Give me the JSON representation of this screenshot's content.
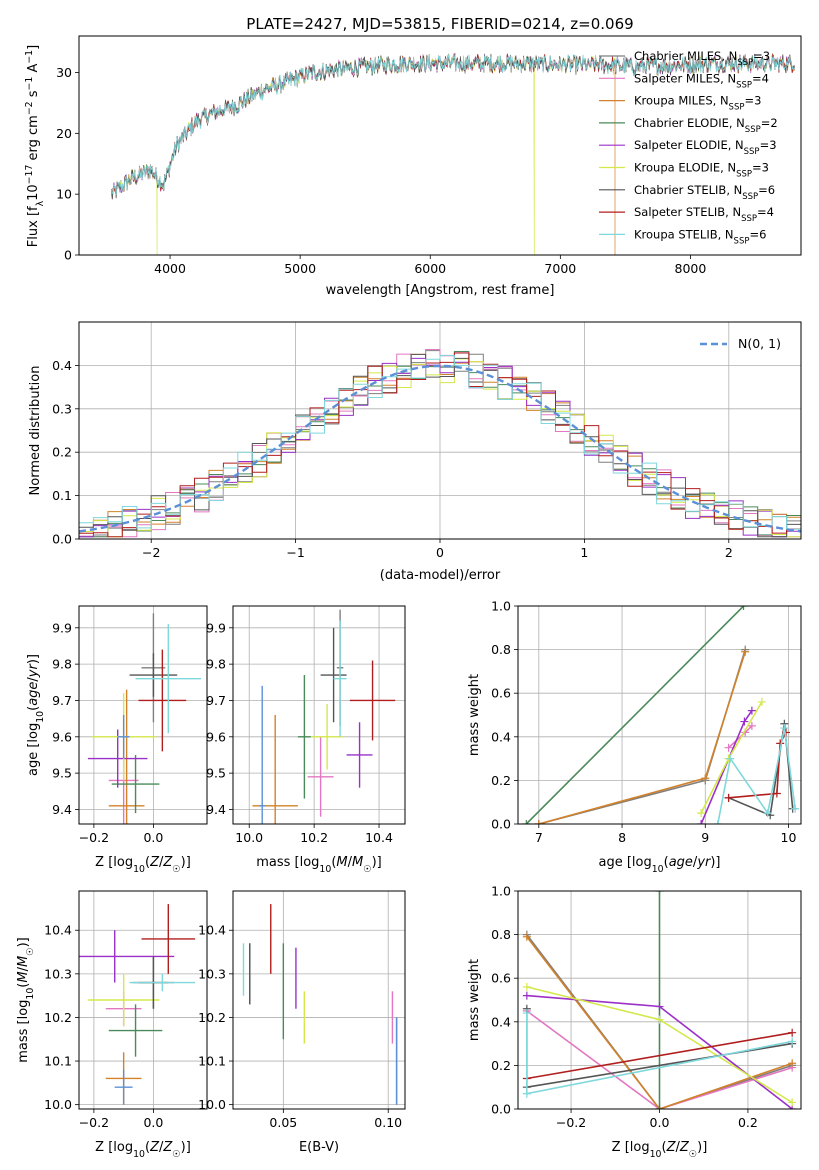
{
  "figure_title": "PLATE=2427, MJD=53815, FIBERID=0214, z=0.069",
  "colors": {
    "Chabrier MILES": "#7f7f7f",
    "Salpeter MILES": "#e377c2",
    "Kroupa MILES": "#d2822a",
    "Chabrier ELODIE": "#4a8a5a",
    "Salpeter ELODIE": "#9b30c8",
    "Kroupa ELODIE": "#d4e84a",
    "Chabrier STELIB": "#555555",
    "Salpeter STELIB": "#b21e1e",
    "Kroupa STELIB": "#7fd8dc",
    "gaussian": "#5b8fd6",
    "extra_blue": "#5b8fd6"
  },
  "legend": [
    {
      "name": "Chabrier MILES",
      "label": "Chabrier MILES, N",
      "sub": "SSP",
      "suffix": "=3"
    },
    {
      "name": "Salpeter MILES",
      "label": "Salpeter MILES, N",
      "sub": "SSP",
      "suffix": "=4"
    },
    {
      "name": "Kroupa MILES",
      "label": "Kroupa MILES, N",
      "sub": "SSP",
      "suffix": "=3"
    },
    {
      "name": "Chabrier ELODIE",
      "label": "Chabrier ELODIE, N",
      "sub": "SSP",
      "suffix": "=2"
    },
    {
      "name": "Salpeter ELODIE",
      "label": "Salpeter ELODIE, N",
      "sub": "SSP",
      "suffix": "=3"
    },
    {
      "name": "Kroupa ELODIE",
      "label": "Kroupa ELODIE, N",
      "sub": "SSP",
      "suffix": "=3"
    },
    {
      "name": "Chabrier STELIB",
      "label": "Chabrier STELIB, N",
      "sub": "SSP",
      "suffix": "=6"
    },
    {
      "name": "Salpeter STELIB",
      "label": "Salpeter STELIB, N",
      "sub": "SSP",
      "suffix": "=4"
    },
    {
      "name": "Kroupa STELIB",
      "label": "Kroupa STELIB, N",
      "sub": "SSP",
      "suffix": "=6"
    }
  ],
  "chart_data": [
    {
      "panel": "spectrum",
      "type": "line",
      "xlabel": "wavelength [Angstrom, rest frame]",
      "ylabel": "Flux [f_λ10⁻¹⁷ erg cm⁻² s⁻¹ A⁻¹]",
      "xlim": [
        3300,
        8850
      ],
      "ylim": [
        0,
        36
      ],
      "xticks": [
        4000,
        5000,
        6000,
        7000,
        8000
      ],
      "yticks": [
        0,
        10,
        20,
        30
      ],
      "legend_position": "right",
      "continuum": {
        "x": [
          3550,
          3700,
          3850,
          3950,
          4050,
          4200,
          4350,
          4500,
          4700,
          4900,
          5100,
          5300,
          5500,
          5800,
          6100,
          6400,
          6700,
          7000,
          7300,
          7600,
          7900,
          8200,
          8500,
          8800
        ],
        "y": [
          10,
          12.5,
          14,
          11.5,
          18,
          22,
          23.5,
          24.5,
          27,
          28.5,
          30,
          30.5,
          31,
          31.5,
          31.5,
          31.5,
          31.5,
          31.3,
          31.3,
          31.0,
          31.2,
          31.5,
          31.5,
          31.5
        ]
      },
      "gaps": [
        {
          "x": 3900,
          "series": "Kroupa ELODIE"
        },
        {
          "x": 6800,
          "series": "Kroupa ELODIE"
        },
        {
          "x": 7420,
          "series": "Kroupa MILES"
        }
      ]
    },
    {
      "panel": "residual_histogram",
      "type": "bar",
      "xlabel": "(data-model)/error",
      "ylabel": "Normed distribution",
      "xlim": [
        -2.5,
        2.5
      ],
      "ylim": [
        0,
        0.5
      ],
      "xticks": [
        -2,
        -1,
        0,
        1,
        2
      ],
      "yticks": [
        0.0,
        0.1,
        0.2,
        0.3,
        0.4
      ],
      "gaussian_label": "N(0, 1)",
      "legend_position": "top-right"
    },
    {
      "panel": "age_vs_Z",
      "type": "scatter",
      "xlabel": "Z [log10(Z/Z☉)]",
      "ylabel": "age [log10(age/yr)]",
      "xlim": [
        -0.25,
        0.18
      ],
      "ylim": [
        9.36,
        9.96
      ],
      "xticks": [
        -0.2,
        0.0
      ],
      "yticks": [
        9.4,
        9.5,
        9.6,
        9.7,
        9.8,
        9.9
      ],
      "points": [
        {
          "series": "Chabrier MILES",
          "x": 0.0,
          "xerr": 0.04,
          "y": 9.79,
          "yerr": 0.15
        },
        {
          "series": "Salpeter MILES",
          "x": -0.1,
          "xerr": 0.05,
          "y": 9.48,
          "yerr": 0.14
        },
        {
          "series": "Kroupa MILES",
          "x": -0.09,
          "xerr": 0.06,
          "y": 9.41,
          "yerr": 0.32
        },
        {
          "series": "Chabrier ELODIE",
          "x": -0.06,
          "xerr": 0.08,
          "y": 9.47,
          "yerr": 0.08
        },
        {
          "series": "Salpeter ELODIE",
          "x": -0.12,
          "xerr": 0.1,
          "y": 9.54,
          "yerr": 0.08
        },
        {
          "series": "Kroupa ELODIE",
          "x": -0.1,
          "xerr": 0.11,
          "y": 9.6,
          "yerr": 0.12
        },
        {
          "series": "Chabrier STELIB",
          "x": 0.0,
          "xerr": 0.08,
          "y": 9.77,
          "yerr": 0.06
        },
        {
          "series": "Salpeter STELIB",
          "x": 0.03,
          "xerr": 0.08,
          "y": 9.7,
          "yerr": 0.14
        },
        {
          "series": "Kroupa STELIB",
          "x": 0.05,
          "xerr": 0.11,
          "y": 9.76,
          "yerr": 0.15
        },
        {
          "series": "extra",
          "x": -0.1,
          "xerr": 0.02,
          "y": 9.6,
          "yerr": 0.06
        }
      ]
    },
    {
      "panel": "age_vs_mass",
      "type": "scatter",
      "xlabel": "mass [log10(M/M☉)]",
      "xlim": [
        9.95,
        10.48
      ],
      "ylim": [
        9.36,
        9.96
      ],
      "xticks": [
        10.0,
        10.2,
        10.4
      ],
      "yticks": [
        9.4,
        9.5,
        9.6,
        9.7,
        9.8,
        9.9
      ],
      "points": [
        {
          "series": "Chabrier MILES",
          "x": 10.28,
          "xerr": 0.01,
          "y": 9.79,
          "yerr": 0.16
        },
        {
          "series": "Salpeter MILES",
          "x": 10.22,
          "xerr": 0.04,
          "y": 9.49,
          "yerr": 0.11
        },
        {
          "series": "Kroupa MILES",
          "x": 10.08,
          "xerr": 0.07,
          "y": 9.41,
          "yerr": 0.25
        },
        {
          "series": "Chabrier ELODIE",
          "x": 10.17,
          "xerr": 0.02,
          "y": 9.6,
          "yerr": 0.17
        },
        {
          "series": "Salpeter ELODIE",
          "x": 10.34,
          "xerr": 0.04,
          "y": 9.55,
          "yerr": 0.09
        },
        {
          "series": "Kroupa ELODIE",
          "x": 10.24,
          "xerr": 0.05,
          "y": 9.6,
          "yerr": 0.09
        },
        {
          "series": "Chabrier STELIB",
          "x": 10.26,
          "xerr": 0.04,
          "y": 9.77,
          "yerr": 0.13
        },
        {
          "series": "Salpeter STELIB",
          "x": 10.38,
          "xerr": 0.07,
          "y": 9.7,
          "yerr": 0.11
        },
        {
          "series": "Kroupa STELIB",
          "x": 10.28,
          "xerr": 0.02,
          "y": 9.76,
          "yerr": 0.16
        },
        {
          "series": "extra",
          "x": 10.04,
          "xerr": 0.01,
          "y": 9.41,
          "yerr": 0.33
        }
      ]
    },
    {
      "panel": "weight_vs_age",
      "type": "line",
      "xlabel": "age [log10(age/yr)]",
      "ylabel": "mass weight",
      "xlim": [
        6.75,
        10.15
      ],
      "ylim": [
        0,
        1.0
      ],
      "xticks": [
        7,
        8,
        9,
        10
      ],
      "yticks": [
        0.0,
        0.2,
        0.4,
        0.6,
        0.8,
        1.0
      ],
      "series": [
        {
          "name": "Chabrier MILES",
          "x": [
            7.0,
            9.0,
            9.48
          ],
          "y": [
            0.0,
            0.2,
            0.8
          ]
        },
        {
          "name": "Salpeter MILES",
          "x": [
            9.28,
            9.48,
            9.56
          ],
          "y": [
            0.35,
            0.42,
            0.45
          ]
        },
        {
          "name": "Kroupa MILES",
          "x": [
            7.0,
            9.0,
            9.48
          ],
          "y": [
            0.0,
            0.21,
            0.79
          ]
        },
        {
          "name": "Chabrier ELODIE",
          "x": [
            6.85,
            9.46
          ],
          "y": [
            0.0,
            1.0
          ]
        },
        {
          "name": "Salpeter ELODIE",
          "x": [
            8.95,
            9.47,
            9.56
          ],
          "y": [
            0.0,
            0.47,
            0.52
          ]
        },
        {
          "name": "Kroupa ELODIE",
          "x": [
            8.95,
            9.28,
            9.68
          ],
          "y": [
            0.05,
            0.3,
            0.56
          ]
        },
        {
          "name": "Chabrier STELIB",
          "x": [
            9.28,
            9.78,
            9.95,
            10.05
          ],
          "y": [
            0.12,
            0.04,
            0.46,
            0.07
          ]
        },
        {
          "name": "Salpeter STELIB",
          "x": [
            9.28,
            9.86,
            9.9,
            9.97
          ],
          "y": [
            0.12,
            0.14,
            0.37,
            0.42
          ]
        },
        {
          "name": "Kroupa STELIB",
          "x": [
            9.15,
            9.3,
            9.75,
            9.95,
            10.08
          ],
          "y": [
            0.0,
            0.3,
            0.05,
            0.44,
            0.07
          ]
        }
      ]
    },
    {
      "panel": "mass_vs_Z",
      "type": "scatter",
      "xlabel": "Z [log10(Z/Z☉)]",
      "ylabel": "mass [log10(M/M☉)]",
      "xlim": [
        -0.25,
        0.18
      ],
      "ylim": [
        9.99,
        10.49
      ],
      "xticks": [
        -0.2,
        0.0
      ],
      "yticks": [
        10.0,
        10.1,
        10.2,
        10.3,
        10.4
      ],
      "points": [
        {
          "series": "Chabrier MILES",
          "x": 0.0,
          "xerr": 0.07,
          "y": 10.28,
          "yerr": 0.06
        },
        {
          "series": "Salpeter MILES",
          "x": -0.1,
          "xerr": 0.06,
          "y": 10.22,
          "yerr": 0.04
        },
        {
          "series": "Kroupa MILES",
          "x": -0.1,
          "xerr": 0.06,
          "y": 10.06,
          "yerr": 0.06
        },
        {
          "series": "Chabrier ELODIE",
          "x": -0.06,
          "xerr": 0.09,
          "y": 10.17,
          "yerr": 0.06
        },
        {
          "series": "Salpeter ELODIE",
          "x": -0.13,
          "xerr": 0.2,
          "y": 10.34,
          "yerr": 0.06
        },
        {
          "series": "Kroupa ELODIE",
          "x": -0.1,
          "xerr": 0.12,
          "y": 10.24,
          "yerr": 0.06
        },
        {
          "series": "Chabrier STELIB",
          "x": 0.0,
          "xerr": 0.05,
          "y": 10.28,
          "yerr": 0.06
        },
        {
          "series": "Salpeter STELIB",
          "x": 0.05,
          "xerr": 0.09,
          "y": 10.38,
          "yerr": 0.08
        },
        {
          "series": "Kroupa STELIB",
          "x": 0.03,
          "xerr": 0.11,
          "y": 10.28,
          "yerr": 0.02
        },
        {
          "series": "extra",
          "x": -0.1,
          "xerr": 0.03,
          "y": 10.04,
          "yerr": 0.04
        }
      ]
    },
    {
      "panel": "mass_vs_ebv",
      "type": "scatter",
      "xlabel": "E(B-V)",
      "xlim": [
        0.026,
        0.108
      ],
      "ylim": [
        9.99,
        10.49
      ],
      "xticks": [
        0.05,
        0.1
      ],
      "yticks": [
        10.0,
        10.1,
        10.2,
        10.3,
        10.4
      ],
      "points": [
        {
          "series": "Chabrier MILES",
          "x": 0.034,
          "y": 10.3,
          "yerr": 0.07
        },
        {
          "series": "Salpeter MILES",
          "x": 0.102,
          "y": 10.2,
          "yerr": 0.06
        },
        {
          "series": "Kroupa MILES",
          "x": 0.104,
          "y": 10.1,
          "yerr": 0.1
        },
        {
          "series": "Chabrier ELODIE",
          "x": 0.05,
          "y": 10.26,
          "yerr": 0.11
        },
        {
          "series": "Salpeter ELODIE",
          "x": 0.056,
          "y": 10.29,
          "yerr": 0.07
        },
        {
          "series": "Kroupa ELODIE",
          "x": 0.06,
          "y": 10.2,
          "yerr": 0.06
        },
        {
          "series": "Chabrier STELIB",
          "x": 0.034,
          "y": 10.3,
          "yerr": 0.07
        },
        {
          "series": "Salpeter STELIB",
          "x": 0.044,
          "y": 10.38,
          "yerr": 0.08
        },
        {
          "series": "Kroupa STELIB",
          "x": 0.031,
          "y": 10.31,
          "yerr": 0.06
        },
        {
          "series": "extra",
          "x": 0.104,
          "y": 10.1,
          "yerr": 0.1
        }
      ]
    },
    {
      "panel": "weight_vs_Z",
      "type": "line",
      "xlabel": "Z [log10(Z/Z☉)]",
      "ylabel": "mass weight",
      "xlim": [
        -0.32,
        0.32
      ],
      "ylim": [
        0,
        1.0
      ],
      "xticks": [
        -0.2,
        0.0,
        0.2
      ],
      "yticks": [
        0.0,
        0.2,
        0.4,
        0.6,
        0.8,
        1.0
      ],
      "series": [
        {
          "name": "Chabrier MILES",
          "x": [
            -0.3,
            0.0,
            0.3
          ],
          "y": [
            0.8,
            0.0,
            0.2
          ]
        },
        {
          "name": "Salpeter MILES",
          "x": [
            -0.3,
            0.0,
            0.3
          ],
          "y": [
            0.45,
            0.0,
            0.19
          ]
        },
        {
          "name": "Kroupa MILES",
          "x": [
            -0.3,
            0.0,
            0.3
          ],
          "y": [
            0.79,
            0.0,
            0.21
          ]
        },
        {
          "name": "Chabrier ELODIE",
          "x": [
            0.0,
            0.0
          ],
          "y": [
            0.0,
            1.0
          ]
        },
        {
          "name": "Salpeter ELODIE",
          "x": [
            -0.3,
            0.0,
            0.3
          ],
          "y": [
            0.52,
            0.47,
            0.0
          ]
        },
        {
          "name": "Kroupa ELODIE",
          "x": [
            -0.3,
            0.0,
            0.3
          ],
          "y": [
            0.56,
            0.41,
            0.03
          ]
        },
        {
          "name": "Chabrier STELIB",
          "x": [
            -0.3,
            -0.3,
            0.3
          ],
          "y": [
            0.46,
            0.1,
            0.3
          ]
        },
        {
          "name": "Salpeter STELIB",
          "x": [
            -0.3,
            0.3
          ],
          "y": [
            0.14,
            0.35
          ]
        },
        {
          "name": "Kroupa STELIB",
          "x": [
            -0.3,
            -0.3,
            0.3
          ],
          "y": [
            0.44,
            0.07,
            0.31
          ]
        }
      ]
    }
  ]
}
